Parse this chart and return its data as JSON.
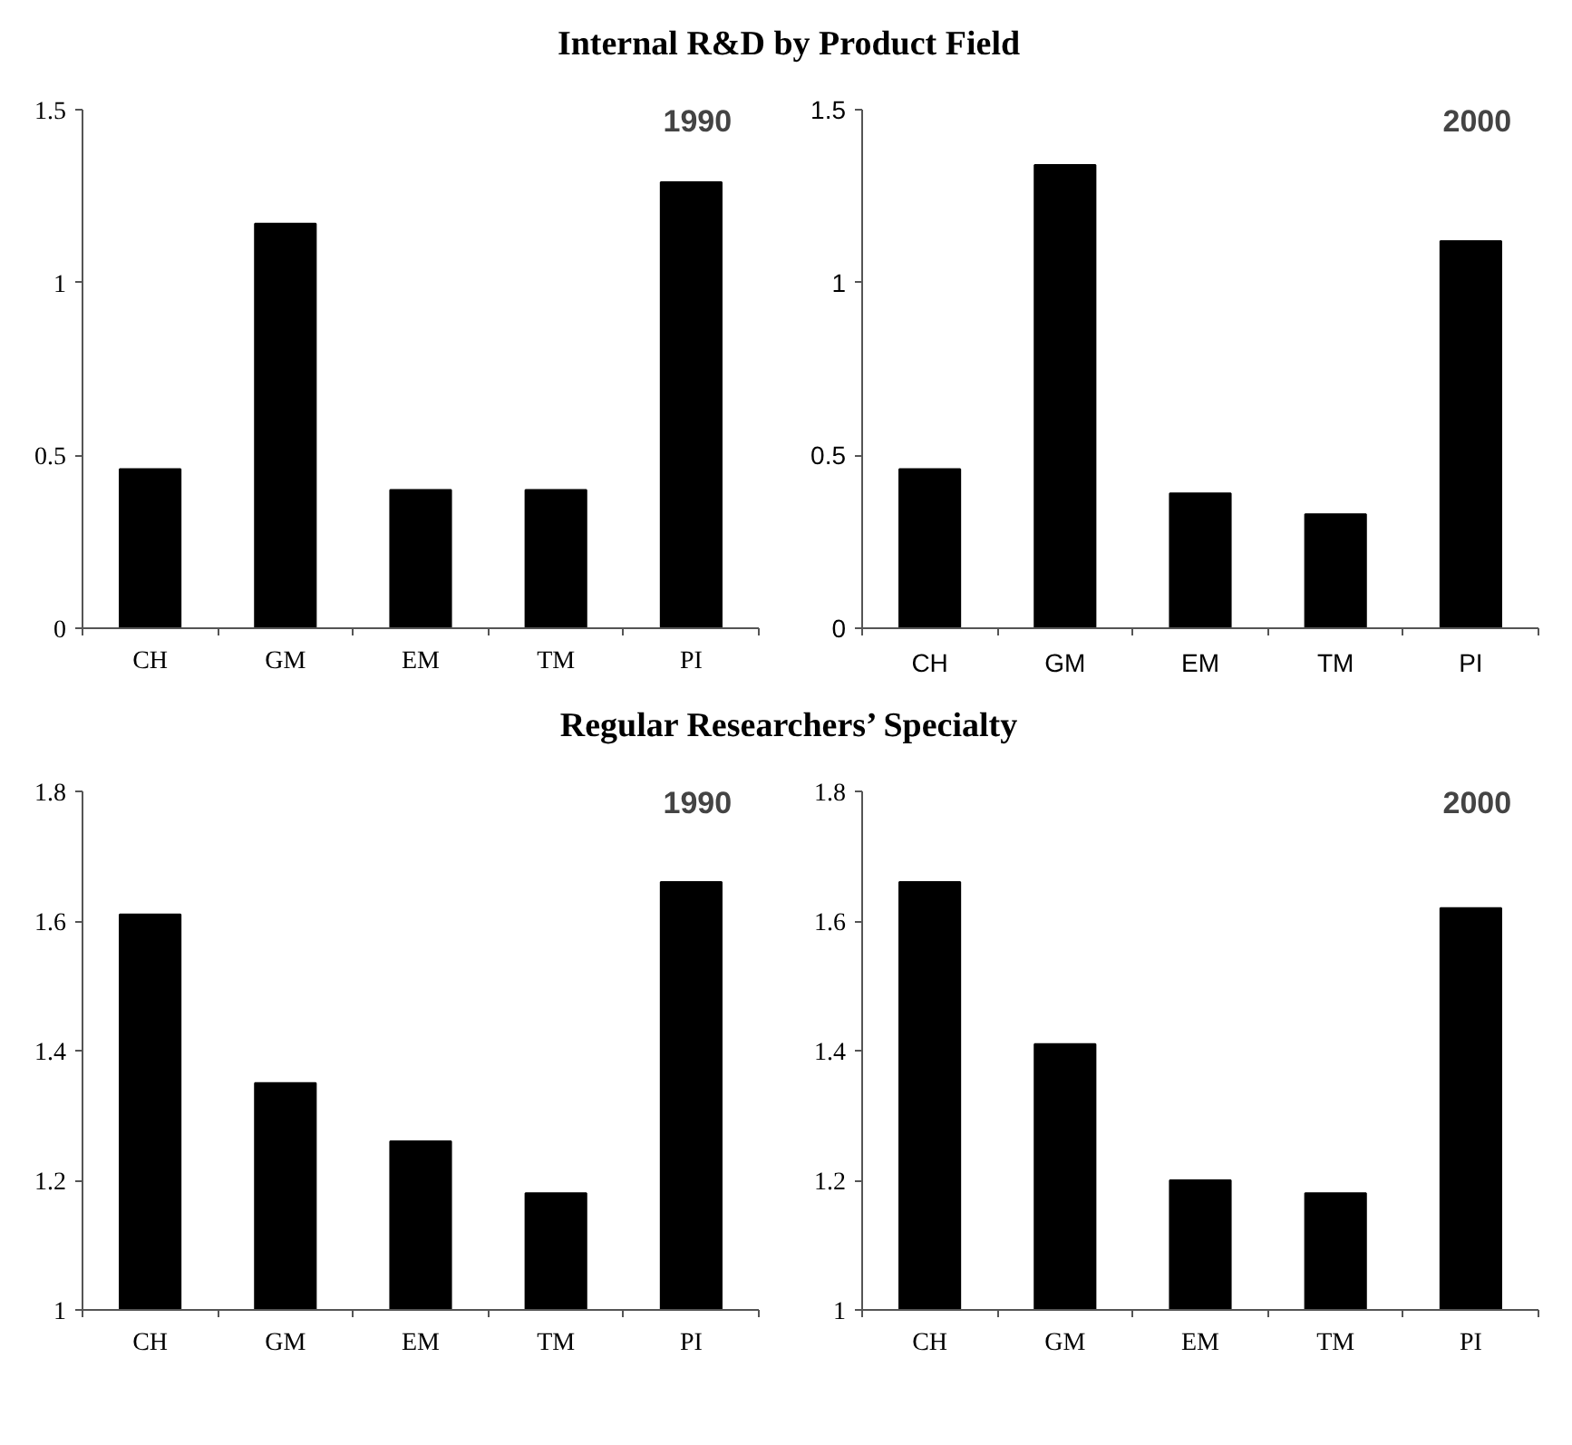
{
  "chart_data": [
    {
      "type": "bar",
      "title": "Internal R&D by Product Field",
      "categories": [
        "CH",
        "GM",
        "EM",
        "TM",
        "PI"
      ],
      "values": [
        0.46,
        1.17,
        0.4,
        0.4,
        1.29
      ],
      "color": "#000000",
      "ylim": [
        0,
        1.5
      ],
      "yticks": [
        0,
        0.5,
        1,
        1.5
      ],
      "annotations": [
        "1990"
      ]
    },
    {
      "type": "bar",
      "categories": [
        "CH",
        "GM",
        "EM",
        "TM",
        "PI"
      ],
      "values": [
        0.46,
        1.34,
        0.39,
        0.33,
        1.12
      ],
      "color": "#000000",
      "ylim": [
        0,
        1.5
      ],
      "yticks": [
        0,
        0.5,
        1,
        1.5
      ],
      "annotations": [
        "2000"
      ]
    },
    {
      "type": "bar",
      "title": "Regular Researchers’ Specialty",
      "categories": [
        "CH",
        "GM",
        "EM",
        "TM",
        "PI"
      ],
      "values": [
        1.61,
        1.35,
        1.26,
        1.18,
        1.66
      ],
      "color": "#000000",
      "ylim": [
        1,
        1.8
      ],
      "yticks": [
        1,
        1.2,
        1.4,
        1.6,
        1.8
      ],
      "annotations": [
        "1990"
      ]
    },
    {
      "type": "bar",
      "categories": [
        "CH",
        "GM",
        "EM",
        "TM",
        "PI"
      ],
      "values": [
        1.66,
        1.41,
        1.2,
        1.18,
        1.62
      ],
      "color": "#000000",
      "ylim": [
        1,
        1.8
      ],
      "yticks": [
        1,
        1.2,
        1.4,
        1.6,
        1.8
      ],
      "annotations": [
        "2000"
      ]
    }
  ]
}
